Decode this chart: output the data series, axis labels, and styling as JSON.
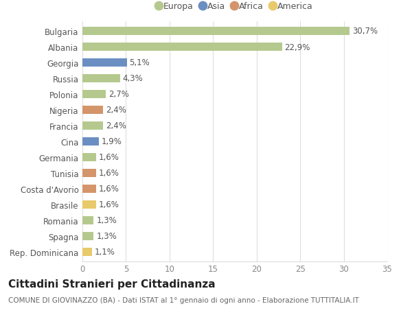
{
  "countries": [
    "Bulgaria",
    "Albania",
    "Georgia",
    "Russia",
    "Polonia",
    "Nigeria",
    "Francia",
    "Cina",
    "Germania",
    "Tunisia",
    "Costa d'Avorio",
    "Brasile",
    "Romania",
    "Spagna",
    "Rep. Dominicana"
  ],
  "values": [
    30.7,
    22.9,
    5.1,
    4.3,
    2.7,
    2.4,
    2.4,
    1.9,
    1.6,
    1.6,
    1.6,
    1.6,
    1.3,
    1.3,
    1.1
  ],
  "labels": [
    "30,7%",
    "22,9%",
    "5,1%",
    "4,3%",
    "2,7%",
    "2,4%",
    "2,4%",
    "1,9%",
    "1,6%",
    "1,6%",
    "1,6%",
    "1,6%",
    "1,3%",
    "1,3%",
    "1,1%"
  ],
  "continents": [
    "Europa",
    "Europa",
    "Asia",
    "Europa",
    "Europa",
    "Africa",
    "Europa",
    "Asia",
    "Europa",
    "Africa",
    "Africa",
    "America",
    "Europa",
    "Europa",
    "America"
  ],
  "continent_colors": {
    "Europa": "#b5c98e",
    "Asia": "#6b8fc2",
    "Africa": "#d4956a",
    "America": "#e8c96b"
  },
  "legend_order": [
    "Europa",
    "Asia",
    "Africa",
    "America"
  ],
  "title": "Cittadini Stranieri per Cittadinanza",
  "subtitle": "COMUNE DI GIOVINAZZO (BA) - Dati ISTAT al 1° gennaio di ogni anno - Elaborazione TUTTITALIA.IT",
  "xlim": [
    0,
    35
  ],
  "xticks": [
    0,
    5,
    10,
    15,
    20,
    25,
    30,
    35
  ],
  "bg_color": "#ffffff",
  "grid_color": "#dddddd",
  "bar_height": 0.55,
  "label_fontsize": 8.5,
  "tick_fontsize": 8.5,
  "title_fontsize": 11,
  "subtitle_fontsize": 7.5
}
